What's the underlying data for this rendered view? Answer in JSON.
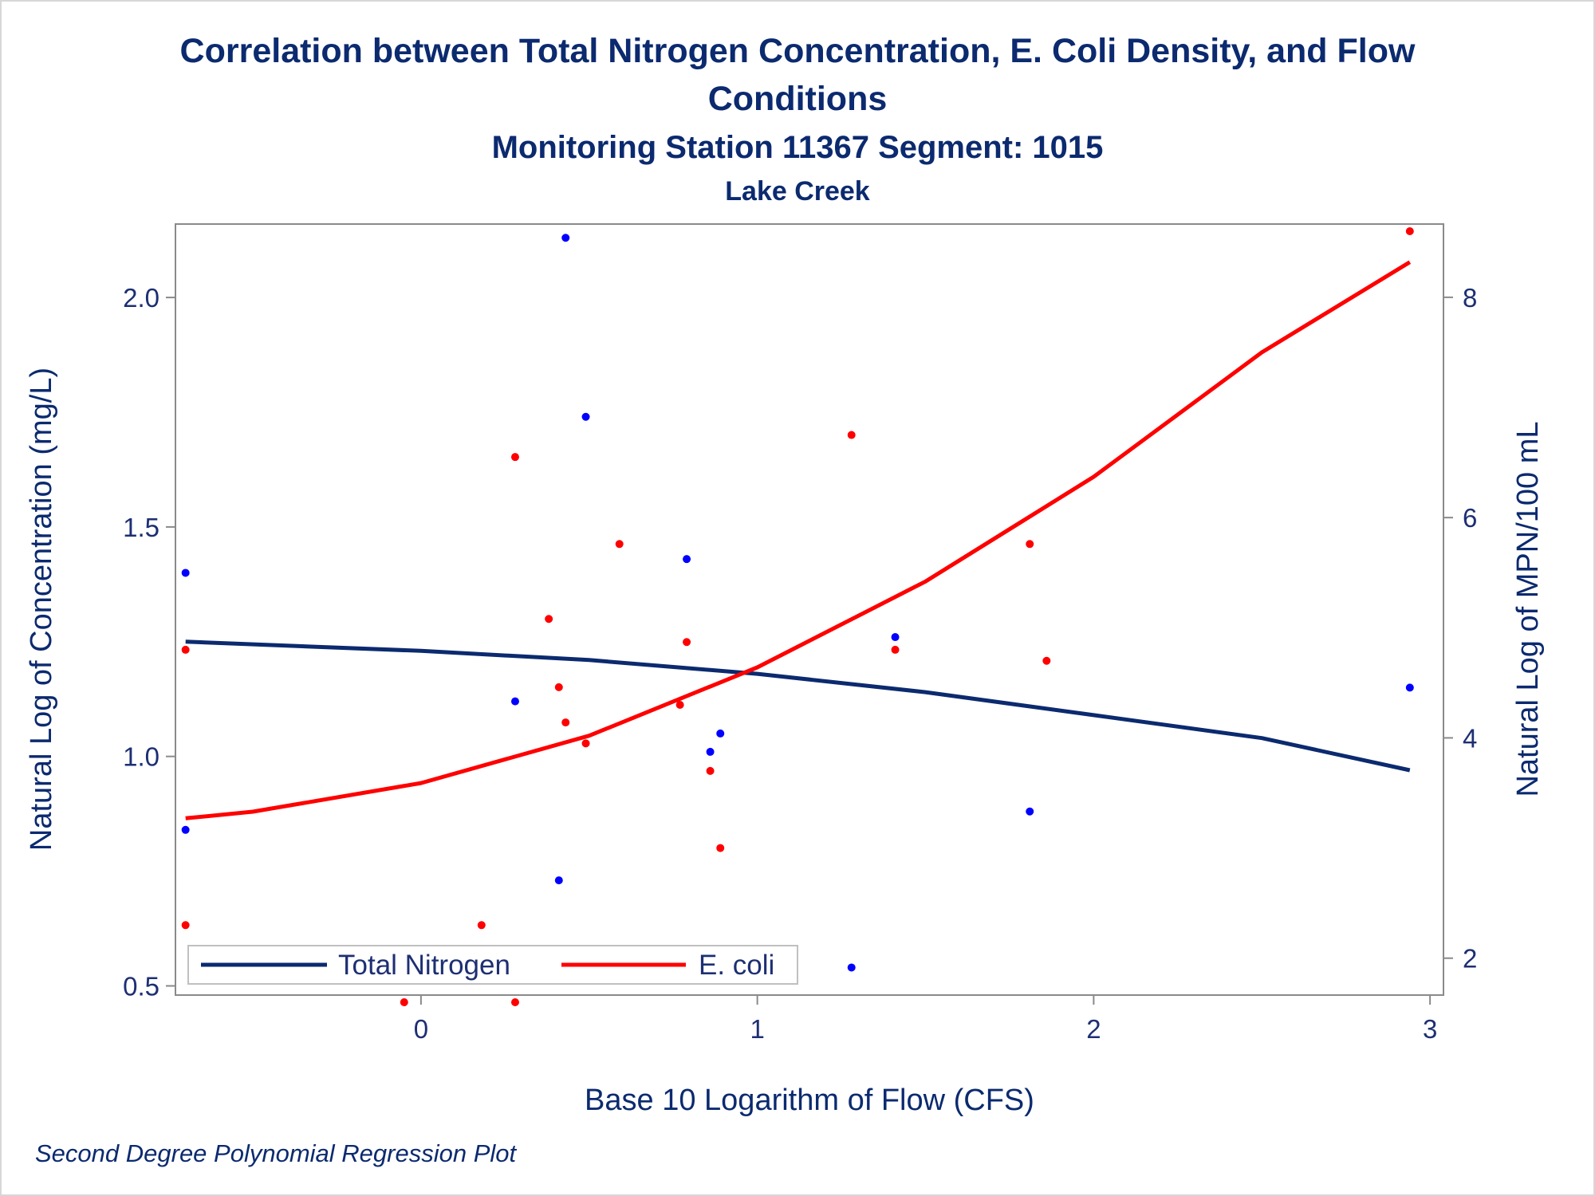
{
  "chart_data": {
    "type": "scatter",
    "title": "Correlation between Total Nitrogen Concentration, E. Coli Density, and Flow",
    "title_line2": "Conditions",
    "subtitle": "Monitoring Station 11367 Segment: 1015",
    "subtitle2": "Lake Creek",
    "xlabel": "Base 10 Logarithm of Flow (CFS)",
    "ylabel_left": "Natural Log of Concentration (mg/L)",
    "ylabel_right": "Natural Log of MPN/100 mL",
    "footnote": "Second Degree Polynomial Regression Plot",
    "xlim": [
      -0.73,
      3.04
    ],
    "ylim_left": [
      0.48,
      2.16
    ],
    "ylim_right": [
      1.665,
      8.665
    ],
    "x_ticks": [
      {
        "value": 0,
        "label": "0"
      },
      {
        "value": 1,
        "label": "1"
      },
      {
        "value": 2,
        "label": "2"
      },
      {
        "value": 3,
        "label": "3"
      }
    ],
    "y_left_ticks": [
      {
        "value": 0.5,
        "label": "0.5"
      },
      {
        "value": 1.0,
        "label": "1.0"
      },
      {
        "value": 1.5,
        "label": "1.5"
      },
      {
        "value": 2.0,
        "label": "2.0"
      }
    ],
    "y_right_ticks": [
      {
        "value": 2,
        "label": "2"
      },
      {
        "value": 4,
        "label": "4"
      },
      {
        "value": 6,
        "label": "6"
      },
      {
        "value": 8,
        "label": "8"
      }
    ],
    "grid": false,
    "legend_position": "bottom-left",
    "series": [
      {
        "name": "Total Nitrogen",
        "axis": "left",
        "color": "#0b2a6f",
        "point_color": "#0000ff",
        "points": [
          [
            -0.7,
            1.4
          ],
          [
            -0.7,
            0.84
          ],
          [
            0.28,
            1.12
          ],
          [
            0.41,
            0.73
          ],
          [
            0.43,
            2.13
          ],
          [
            0.49,
            1.74
          ],
          [
            0.79,
            1.43
          ],
          [
            0.86,
            1.01
          ],
          [
            0.89,
            1.05
          ],
          [
            1.28,
            0.54
          ],
          [
            1.41,
            1.26
          ],
          [
            1.81,
            0.88
          ],
          [
            2.94,
            1.15
          ]
        ],
        "fit": [
          [
            -0.7,
            1.25
          ],
          [
            0.0,
            1.23
          ],
          [
            0.5,
            1.21
          ],
          [
            1.0,
            1.18
          ],
          [
            1.5,
            1.14
          ],
          [
            2.0,
            1.09
          ],
          [
            2.5,
            1.04
          ],
          [
            2.94,
            0.97
          ]
        ]
      },
      {
        "name": "E. coli",
        "axis": "right",
        "color": "#ff0000",
        "point_color": "#ff0000",
        "points": [
          [
            -0.7,
            4.8
          ],
          [
            -0.7,
            2.3
          ],
          [
            -0.05,
            1.6
          ],
          [
            0.18,
            2.3
          ],
          [
            0.28,
            1.6
          ],
          [
            0.28,
            6.55
          ],
          [
            0.38,
            5.08
          ],
          [
            0.41,
            4.46
          ],
          [
            0.43,
            4.14
          ],
          [
            0.49,
            3.95
          ],
          [
            0.59,
            5.76
          ],
          [
            0.77,
            4.3
          ],
          [
            0.79,
            4.87
          ],
          [
            0.86,
            3.7
          ],
          [
            0.89,
            3.0
          ],
          [
            1.28,
            6.75
          ],
          [
            1.41,
            4.8
          ],
          [
            1.81,
            5.76
          ],
          [
            1.86,
            4.7
          ],
          [
            2.94,
            8.6
          ]
        ],
        "fit": [
          [
            -0.7,
            3.27
          ],
          [
            -0.5,
            3.33
          ],
          [
            0.0,
            3.59
          ],
          [
            0.5,
            4.02
          ],
          [
            1.0,
            4.64
          ],
          [
            1.5,
            5.42
          ],
          [
            2.0,
            6.37
          ],
          [
            2.5,
            7.5
          ],
          [
            2.94,
            8.32
          ]
        ]
      }
    ]
  }
}
